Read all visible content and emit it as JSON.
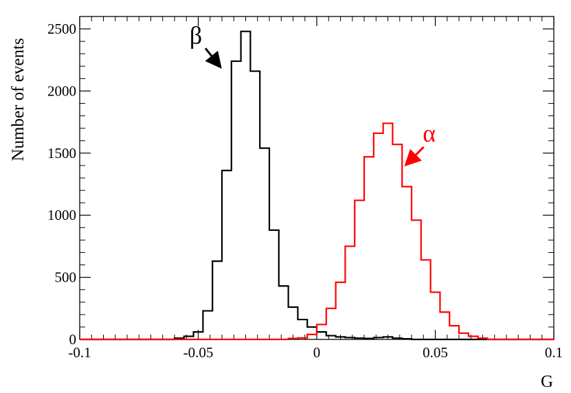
{
  "chart_data": {
    "type": "histogram",
    "xlabel": "G",
    "ylabel": "Number of events",
    "xlim": [
      -0.1,
      0.1
    ],
    "ylim": [
      0,
      2600
    ],
    "x_ticks": [
      "-0.1",
      "-0.05",
      "0",
      "0.05",
      "0.1"
    ],
    "y_ticks": [
      "0",
      "500",
      "1000",
      "1500",
      "2000",
      "2500"
    ],
    "grid": false,
    "bin_width": 0.004,
    "series": [
      {
        "name": "β",
        "color": "#000000",
        "bins": [
          {
            "x": -0.058,
            "y": 10
          },
          {
            "x": -0.054,
            "y": 25
          },
          {
            "x": -0.05,
            "y": 60
          },
          {
            "x": -0.046,
            "y": 230
          },
          {
            "x": -0.042,
            "y": 630
          },
          {
            "x": -0.038,
            "y": 1360
          },
          {
            "x": -0.034,
            "y": 2240
          },
          {
            "x": -0.03,
            "y": 2480
          },
          {
            "x": -0.026,
            "y": 2160
          },
          {
            "x": -0.022,
            "y": 1540
          },
          {
            "x": -0.018,
            "y": 880
          },
          {
            "x": -0.014,
            "y": 430
          },
          {
            "x": -0.01,
            "y": 260
          },
          {
            "x": -0.006,
            "y": 160
          },
          {
            "x": -0.002,
            "y": 100
          },
          {
            "x": 0.002,
            "y": 60
          },
          {
            "x": 0.006,
            "y": 30
          },
          {
            "x": 0.01,
            "y": 20
          },
          {
            "x": 0.014,
            "y": 15
          },
          {
            "x": 0.018,
            "y": 10
          },
          {
            "x": 0.022,
            "y": 8
          },
          {
            "x": 0.026,
            "y": 15
          },
          {
            "x": 0.03,
            "y": 20
          },
          {
            "x": 0.034,
            "y": 10
          },
          {
            "x": 0.038,
            "y": 5
          }
        ]
      },
      {
        "name": "α",
        "color": "#ff0000",
        "bins": [
          {
            "x": -0.01,
            "y": 8
          },
          {
            "x": -0.006,
            "y": 12
          },
          {
            "x": -0.002,
            "y": 40
          },
          {
            "x": 0.002,
            "y": 120
          },
          {
            "x": 0.006,
            "y": 250
          },
          {
            "x": 0.01,
            "y": 460
          },
          {
            "x": 0.014,
            "y": 750
          },
          {
            "x": 0.018,
            "y": 1120
          },
          {
            "x": 0.022,
            "y": 1470
          },
          {
            "x": 0.026,
            "y": 1660
          },
          {
            "x": 0.03,
            "y": 1740
          },
          {
            "x": 0.034,
            "y": 1570
          },
          {
            "x": 0.038,
            "y": 1230
          },
          {
            "x": 0.042,
            "y": 960
          },
          {
            "x": 0.046,
            "y": 640
          },
          {
            "x": 0.05,
            "y": 380
          },
          {
            "x": 0.054,
            "y": 220
          },
          {
            "x": 0.058,
            "y": 110
          },
          {
            "x": 0.062,
            "y": 50
          },
          {
            "x": 0.066,
            "y": 25
          },
          {
            "x": 0.07,
            "y": 10
          }
        ]
      }
    ],
    "annotations": [
      {
        "text": "β",
        "color": "#000000",
        "x": -0.04,
        "y": 2150
      },
      {
        "text": "α",
        "color": "#ff0000",
        "x": 0.037,
        "y": 1350
      }
    ]
  }
}
